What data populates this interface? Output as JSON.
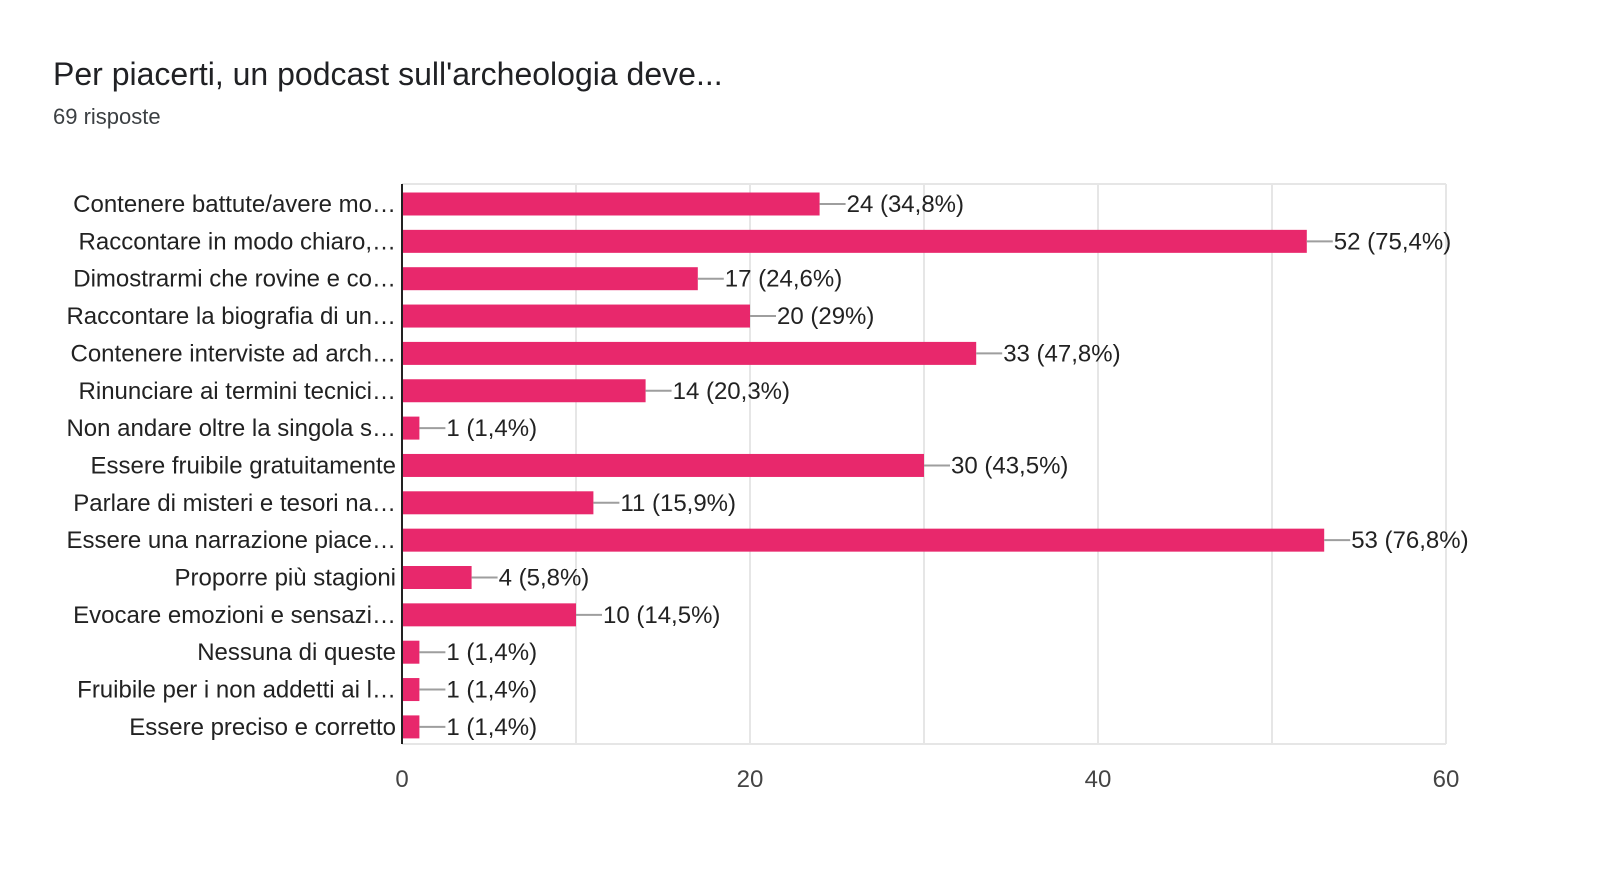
{
  "header": {
    "title": "Per piacerti, un podcast sull'archeologia deve...",
    "subtitle": "69 risposte"
  },
  "chart_data": {
    "type": "bar",
    "orientation": "horizontal",
    "title": "Per piacerti, un podcast sull'archeologia deve...",
    "subtitle": "69 risposte",
    "categories": [
      "Contenere battute/avere mo…",
      "Raccontare in modo chiaro,…",
      "Dimostrarmi che rovine e co…",
      "Raccontare la biografia di un…",
      "Contenere interviste ad arch…",
      "Rinunciare ai termini tecnici…",
      "Non andare oltre la singola s…",
      "Essere fruibile gratuitamente",
      "Parlare di misteri e tesori na…",
      "Essere una narrazione piace…",
      "Proporre più stagioni",
      "Evocare emozioni e sensazi…",
      "Nessuna di queste",
      "Fruibile per i non addetti ai l…",
      "Essere preciso e corretto"
    ],
    "values": [
      24,
      52,
      17,
      20,
      33,
      14,
      1,
      30,
      11,
      53,
      4,
      10,
      1,
      1,
      1
    ],
    "value_labels": [
      "24 (34,8%)",
      "52 (75,4%)",
      "17 (24,6%)",
      "20 (29%)",
      "33 (47,8%)",
      "14 (20,3%)",
      "1 (1,4%)",
      "30 (43,5%)",
      "11 (15,9%)",
      "53 (76,8%)",
      "4 (5,8%)",
      "10 (14,5%)",
      "1 (1,4%)",
      "1 (1,4%)",
      "1 (1,4%)"
    ],
    "xlim": [
      0,
      60
    ],
    "xticks": [
      0,
      20,
      40,
      60
    ],
    "gridlines": [
      10,
      20,
      30,
      40,
      50,
      60
    ],
    "grid": true,
    "bar_color": "#e8286c"
  }
}
